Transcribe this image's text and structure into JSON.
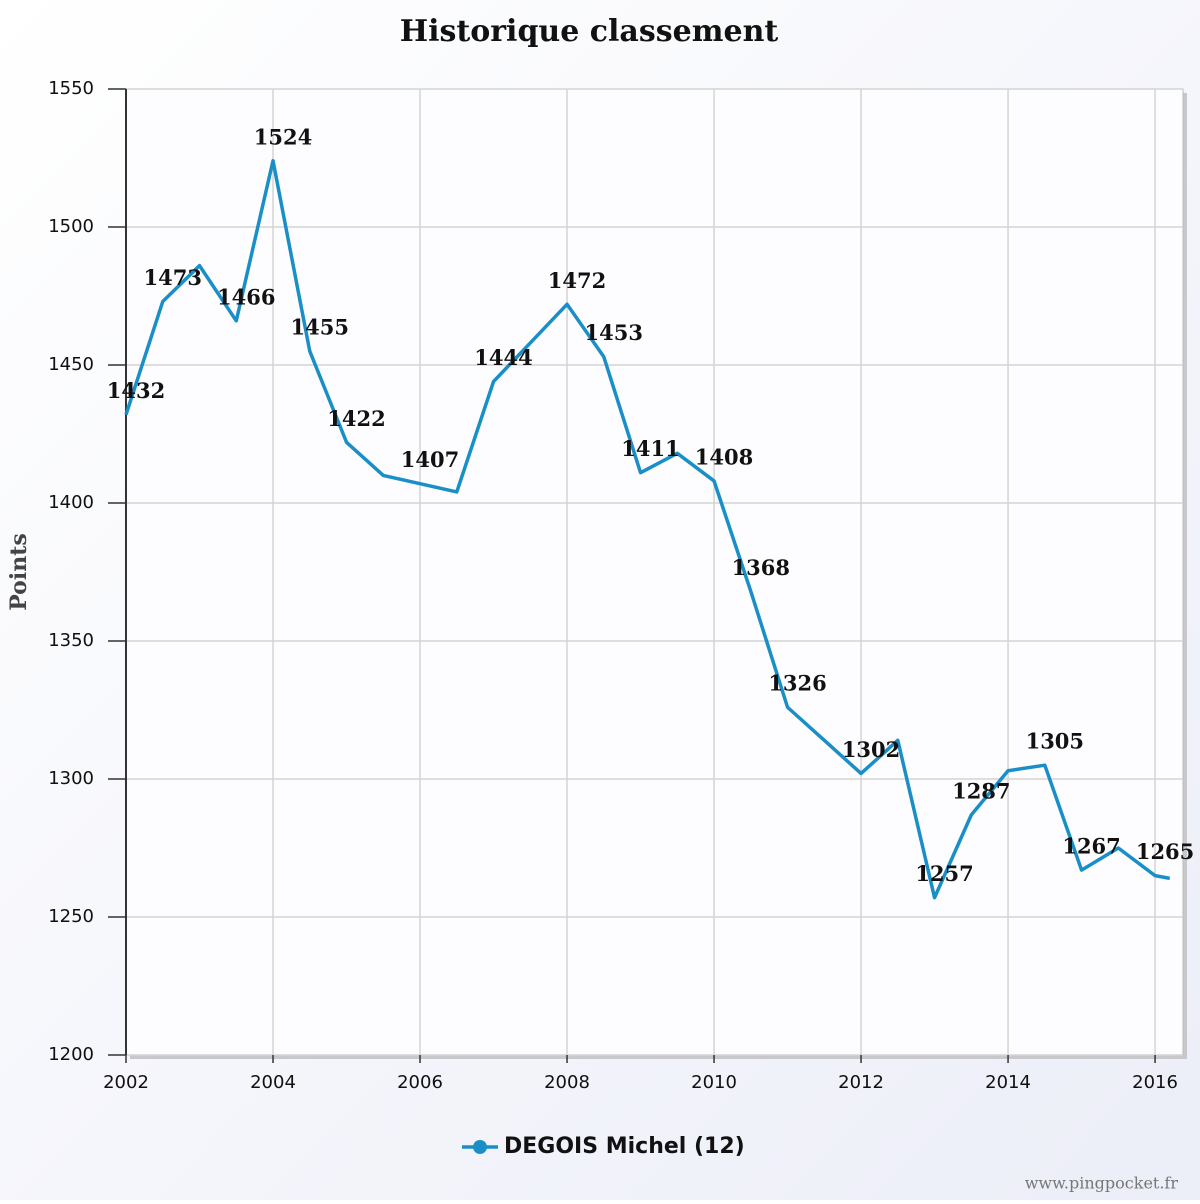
{
  "chart_data": {
    "type": "line",
    "title": "Historique classement",
    "y_label": "Points",
    "footer": "www.pingpocket.fr",
    "x": [
      2002,
      2002.5,
      2003,
      2003.5,
      2004,
      2004.5,
      2005,
      2005.5,
      2006,
      2006.5,
      2007,
      2007.5,
      2008,
      2008.5,
      2009,
      2009.5,
      2010,
      2010.5,
      2011,
      2011.5,
      2012,
      2012.5,
      2013,
      2013.5,
      2014,
      2014.5,
      2015,
      2015.5,
      2016,
      2016.2
    ],
    "series": [
      {
        "name": "DEGOIS Michel (12)",
        "color": "#1a8fc7",
        "values": [
          1432,
          1473,
          1486,
          1466,
          1524,
          1455,
          1422,
          1410,
          1407,
          1404,
          1444,
          1458,
          1472,
          1453,
          1411,
          1418,
          1408,
          1368,
          1326,
          1314,
          1302,
          1314,
          1257,
          1287,
          1303,
          1305,
          1267,
          1275,
          1265,
          1264
        ],
        "value_labels": [
          "1432",
          "1473",
          null,
          "1466",
          "1524",
          "1455",
          "1422",
          null,
          "1407",
          null,
          "1444",
          null,
          "1472",
          "1453",
          "1411",
          null,
          "1408",
          "1368",
          "1326",
          null,
          "1302",
          null,
          "1257",
          "1287",
          null,
          "1305",
          "1267",
          null,
          "1265",
          null
        ]
      }
    ],
    "xlim": [
      2002,
      2016.38
    ],
    "xticks": [
      2002,
      2004,
      2006,
      2008,
      2010,
      2012,
      2014,
      2016
    ],
    "ylim": [
      1200,
      1550
    ],
    "yticks": [
      1200,
      1250,
      1300,
      1350,
      1400,
      1450,
      1500,
      1550
    ],
    "grid": true
  }
}
